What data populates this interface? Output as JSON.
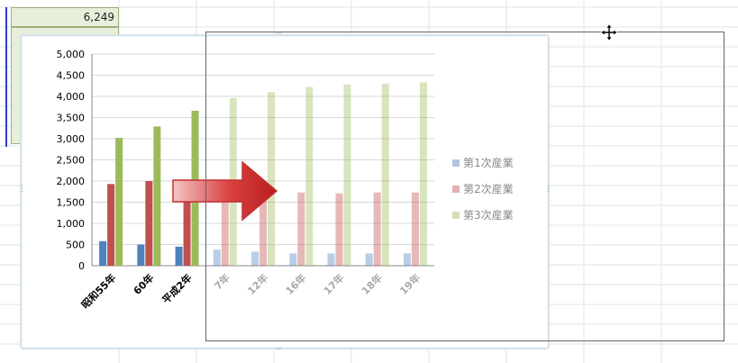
{
  "sheet": {
    "visible_cell_value": "6,249"
  },
  "chart_data": {
    "type": "bar",
    "categories": [
      "昭和55年",
      "60年",
      "平成2年",
      "7年",
      "12年",
      "16年",
      "17年",
      "18年",
      "19年"
    ],
    "series": [
      {
        "name": "第1次産業",
        "values": [
          580,
          500,
          450,
          380,
          330,
          290,
          290,
          290,
          290
        ],
        "color": "#4f81bd"
      },
      {
        "name": "第2次産業",
        "values": [
          1930,
          2000,
          2030,
          1900,
          1800,
          1730,
          1710,
          1730,
          1730
        ],
        "color": "#c0504d"
      },
      {
        "name": "第3次産業",
        "values": [
          3020,
          3290,
          3660,
          3960,
          4100,
          4220,
          4280,
          4300,
          4330
        ],
        "color": "#9bbb59"
      }
    ],
    "ylim": [
      0,
      5000
    ],
    "yticks": [
      "0",
      "500",
      "1,000",
      "1,500",
      "2,000",
      "2,500",
      "3,000",
      "3,500",
      "4,000",
      "4,500",
      "5,000"
    ],
    "legend_position": "right",
    "grid": true
  }
}
